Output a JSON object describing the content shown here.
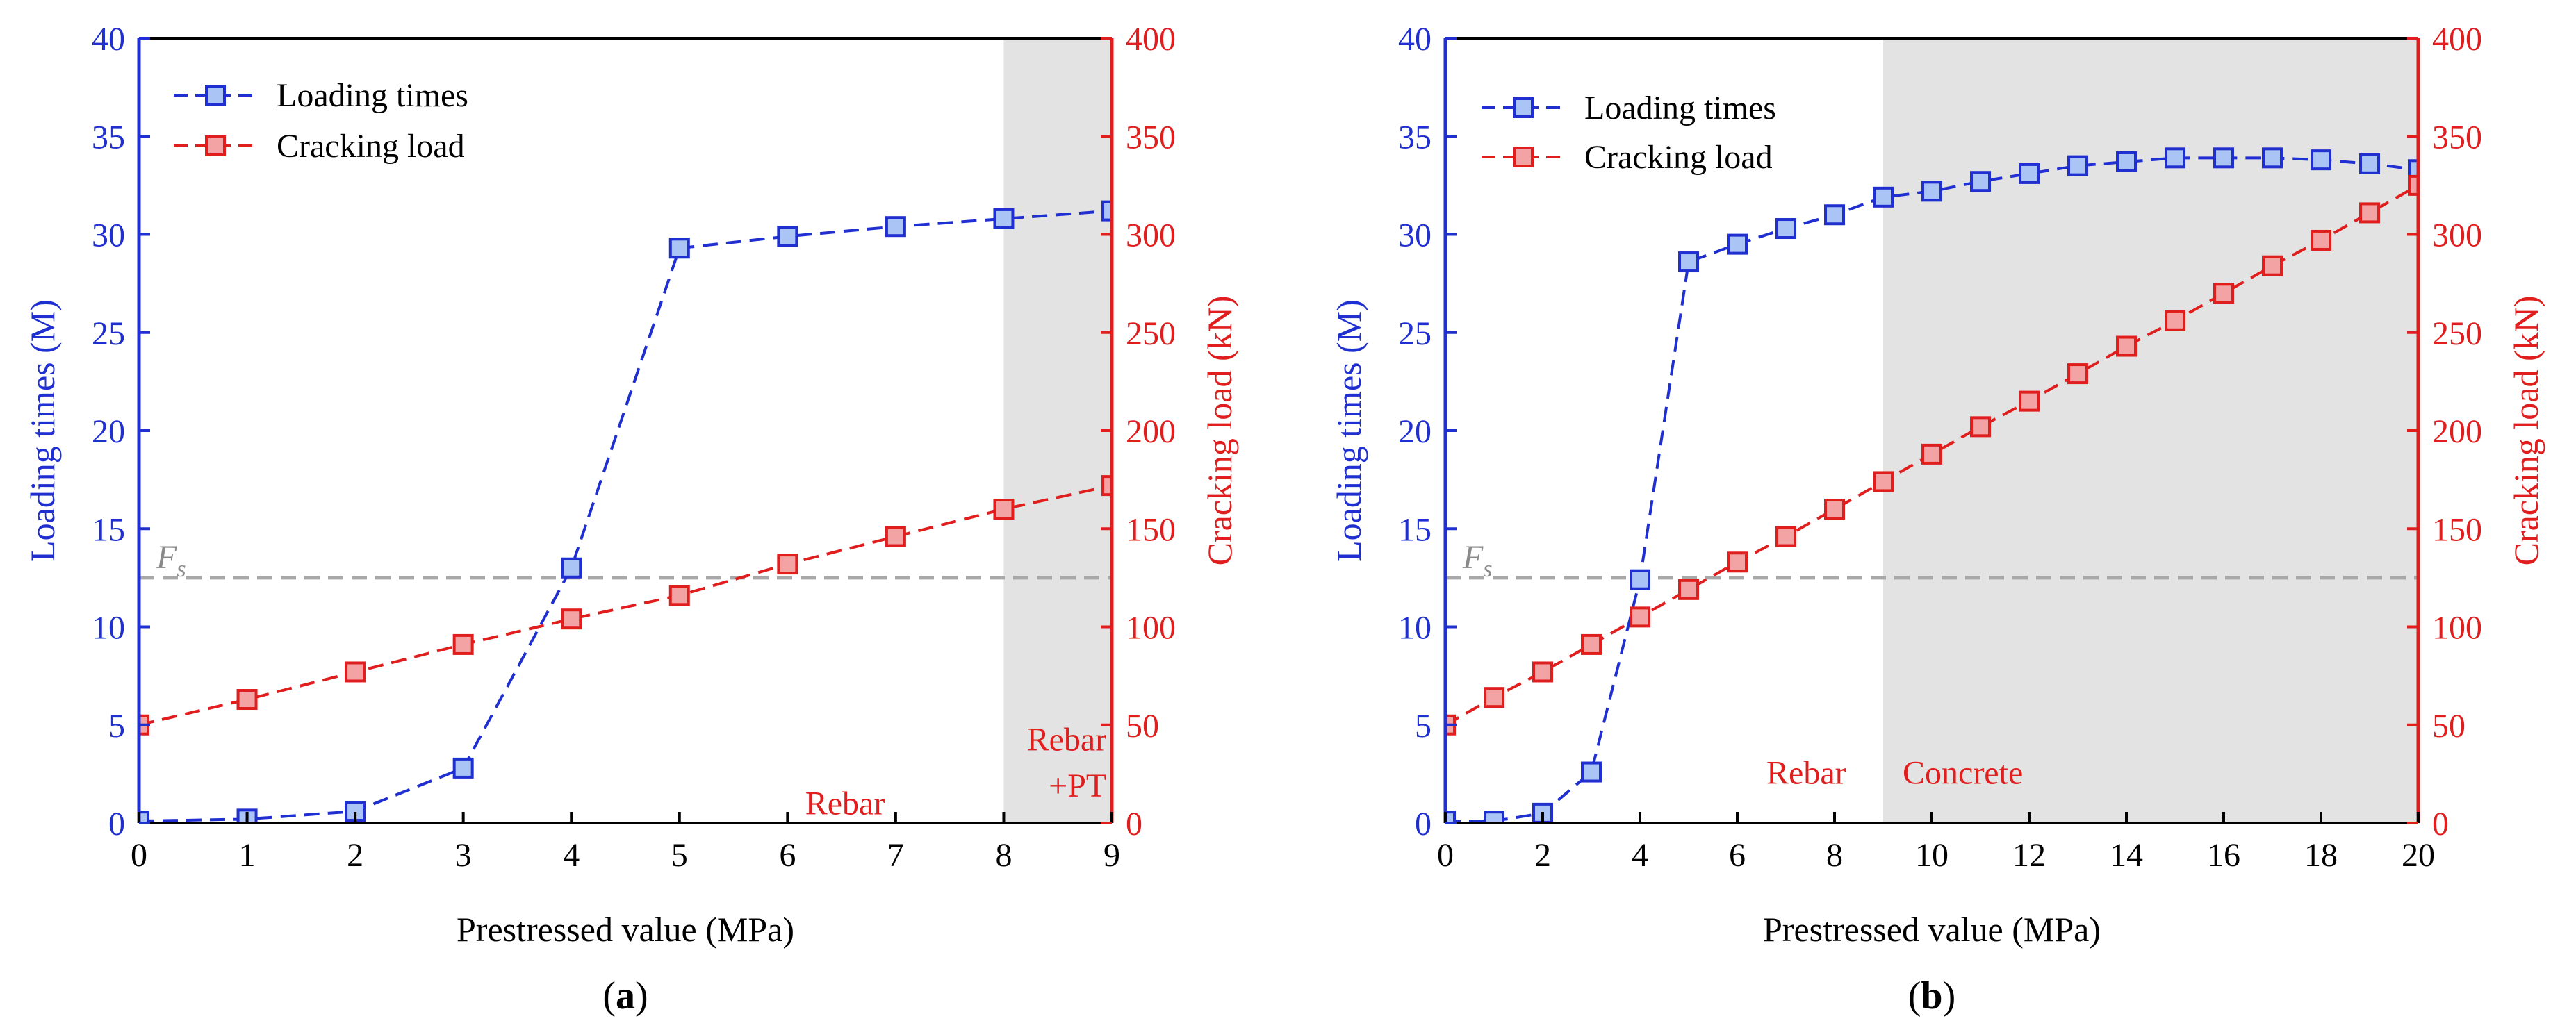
{
  "colors": {
    "blue": "#1f2fd0",
    "red": "#e01e1e",
    "marker_blue_fill": "#a9c4f5",
    "marker_red_fill": "#f3a3a3",
    "shade": "#e3e3e3",
    "ref_line": "#a8a8a8"
  },
  "chart_data": [
    {
      "type": "line",
      "panel_label_open": "(",
      "panel_label_letter": "a",
      "panel_label_close": ")",
      "xlabel": "Prestressed value (MPa)",
      "ylabel_left": "Loading times (M)",
      "ylabel_right": "Cracking load (kN)",
      "xlim": [
        0,
        9
      ],
      "ylim_left": [
        0,
        40
      ],
      "ylim_right": [
        0,
        400
      ],
      "xticks": [
        0,
        1,
        2,
        3,
        4,
        5,
        6,
        7,
        8,
        9
      ],
      "yticks_left": [
        0,
        5,
        10,
        15,
        20,
        25,
        30,
        35,
        40
      ],
      "yticks_right": [
        0,
        50,
        100,
        150,
        200,
        250,
        300,
        350,
        400
      ],
      "reference_line": {
        "label": "F",
        "subscript": "s",
        "y_left": 12.5
      },
      "shaded_region": {
        "x_start": 8,
        "x_end": 9
      },
      "annotations": [
        {
          "text": "Rebar",
          "x": 6.9,
          "y": 0.45
        },
        {
          "text": "Rebar",
          "x": 8.95,
          "y": 3.7
        },
        {
          "text": "+PT",
          "x": 8.95,
          "y": 1.35
        }
      ],
      "legend": [
        "Loading times",
        "Cracking load"
      ],
      "series": [
        {
          "name": "Loading times",
          "axis": "left",
          "x": [
            0,
            1,
            2,
            3,
            4,
            5,
            6,
            7,
            8,
            9
          ],
          "y": [
            0.1,
            0.2,
            0.6,
            2.8,
            13.0,
            29.3,
            29.9,
            30.4,
            30.8,
            31.2
          ]
        },
        {
          "name": "Cracking load",
          "axis": "right",
          "x": [
            0,
            1,
            2,
            3,
            4,
            5,
            6,
            7,
            8,
            9
          ],
          "y": [
            50,
            63,
            77,
            91,
            104,
            116,
            132,
            146,
            160,
            172
          ]
        }
      ]
    },
    {
      "type": "line",
      "panel_label_open": "(",
      "panel_label_letter": "b",
      "panel_label_close": ")",
      "xlabel": "Prestressed value (MPa)",
      "ylabel_left": "Loading times (M)",
      "ylabel_right": "Cracking load (kN)",
      "xlim": [
        0,
        20
      ],
      "ylim_left": [
        0,
        40
      ],
      "ylim_right": [
        0,
        400
      ],
      "xticks": [
        0,
        2,
        4,
        6,
        8,
        10,
        12,
        14,
        16,
        18,
        20
      ],
      "yticks_left": [
        0,
        5,
        10,
        15,
        20,
        25,
        30,
        35,
        40
      ],
      "yticks_right": [
        0,
        50,
        100,
        150,
        200,
        250,
        300,
        350,
        400
      ],
      "reference_line": {
        "label": "F",
        "subscript": "s",
        "y_left": 12.5
      },
      "shaded_region": {
        "x_start": 9,
        "x_end": 20
      },
      "annotations": [
        {
          "text": "Rebar",
          "x": 6.6,
          "y": 2.0
        },
        {
          "text": "Concrete",
          "x": 9.4,
          "y": 2.0
        }
      ],
      "legend": [
        "Loading times",
        "Cracking load"
      ],
      "series": [
        {
          "name": "Loading times",
          "axis": "left",
          "x": [
            0,
            1,
            2,
            3,
            4,
            5,
            6,
            7,
            8,
            9,
            10,
            11,
            12,
            13,
            14,
            15,
            16,
            17,
            18,
            19,
            20
          ],
          "y": [
            0.1,
            0.1,
            0.5,
            2.6,
            12.4,
            28.6,
            29.5,
            30.3,
            31.0,
            31.9,
            32.2,
            32.7,
            33.1,
            33.5,
            33.7,
            33.9,
            33.9,
            33.9,
            33.8,
            33.6,
            33.3
          ]
        },
        {
          "name": "Cracking load",
          "axis": "right",
          "x": [
            0,
            1,
            2,
            3,
            4,
            5,
            6,
            7,
            8,
            9,
            10,
            11,
            12,
            13,
            14,
            15,
            16,
            17,
            18,
            19,
            20
          ],
          "y": [
            50,
            64,
            77,
            91,
            105,
            119,
            133,
            146,
            160,
            174,
            188,
            202,
            215,
            229,
            243,
            256,
            270,
            284,
            297,
            311,
            325
          ]
        }
      ]
    }
  ]
}
